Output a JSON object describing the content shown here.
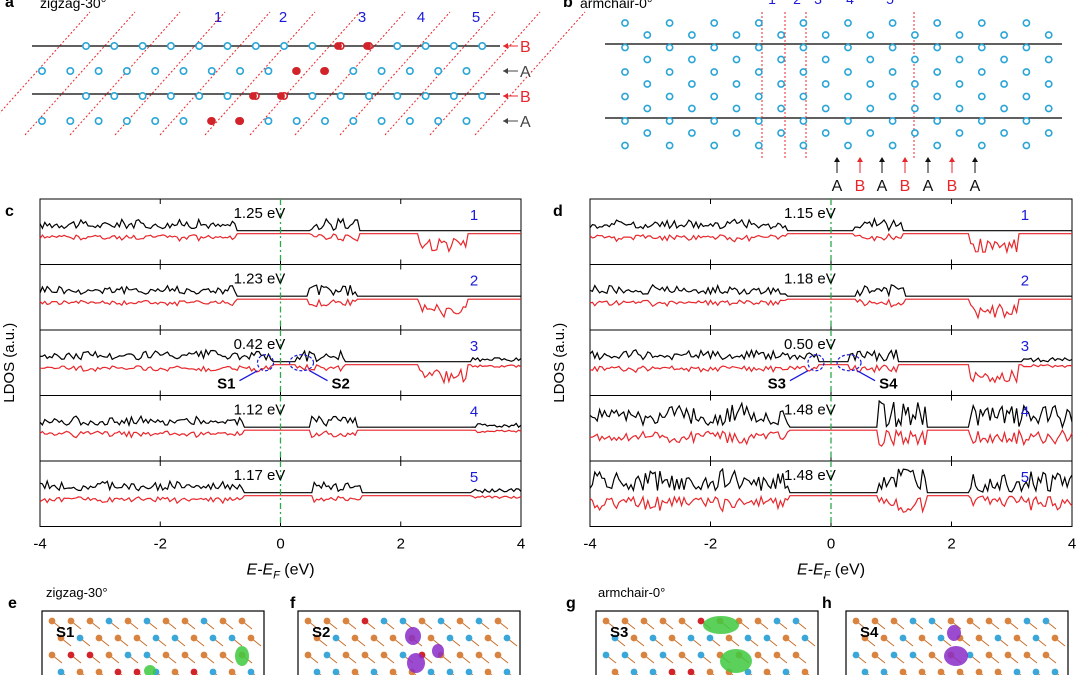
{
  "figure": {
    "panel_labels": {
      "a": "a",
      "b": "b",
      "c": "c",
      "d": "d",
      "e": "e",
      "f": "f",
      "g": "g",
      "h": "h"
    }
  },
  "panel_a": {
    "title": "zigzag-30°",
    "column_labels": [
      "1",
      "2",
      "3",
      "4",
      "5"
    ],
    "row_labels": [
      "B",
      "A",
      "B",
      "A"
    ]
  },
  "panel_b": {
    "title": "armchair-0°",
    "column_labels": [
      "1",
      "2",
      "3",
      "4",
      "5"
    ],
    "bottom_labels": [
      "A",
      "B",
      "A",
      "B",
      "A",
      "B",
      "A"
    ]
  },
  "colors": {
    "atom": "#2aa5d6",
    "defect": "#d2232a",
    "upline": "#000000",
    "downline": "#e8262b",
    "blue_text": "#1a1adb",
    "fermi": "#2ea84a",
    "boundary": "#e8262b"
  },
  "chart_data": [
    {
      "id": "c",
      "type": "line",
      "ylabel": "LDOS (a.u.)",
      "xlabel_main": "E-E",
      "xlabel_sub": "F",
      "xlabel_unit": " (eV)",
      "xlim": [
        -4,
        4
      ],
      "xticks": [
        "-4",
        "-2",
        "0",
        "2",
        "4"
      ],
      "fermi_level": 0,
      "series": [
        {
          "name": "1",
          "gap_label": "1.25 eV",
          "gap": [
            -0.75,
            0.5
          ]
        },
        {
          "name": "2",
          "gap_label": "1.23 eV",
          "gap": [
            -0.75,
            0.48
          ]
        },
        {
          "name": "3",
          "gap_label": "0.42 eV",
          "gap": [
            -0.15,
            0.27
          ],
          "states": [
            {
              "label": "S1",
              "e": -0.25
            },
            {
              "label": "S2",
              "e": 0.35
            }
          ]
        },
        {
          "name": "4",
          "gap_label": "1.12 eV",
          "gap": [
            -0.6,
            0.52
          ]
        },
        {
          "name": "5",
          "gap_label": "1.17 eV",
          "gap": [
            -0.62,
            0.55
          ]
        }
      ]
    },
    {
      "id": "d",
      "type": "line",
      "ylabel": "LDOS (a.u.)",
      "xlabel_main": "E-E",
      "xlabel_sub": "F",
      "xlabel_unit": " (eV)",
      "xlim": [
        -4,
        4
      ],
      "xticks": [
        "-4",
        "-2",
        "0",
        "2",
        "4"
      ],
      "fermi_level": 0,
      "series": [
        {
          "name": "1",
          "gap_label": "1.15 eV",
          "gap": [
            -0.75,
            0.4
          ]
        },
        {
          "name": "2",
          "gap_label": "1.18 eV",
          "gap": [
            -0.75,
            0.43
          ]
        },
        {
          "name": "3",
          "gap_label": "0.50 eV",
          "gap": [
            -0.2,
            0.3
          ],
          "states": [
            {
              "label": "S3",
              "e": -0.25
            },
            {
              "label": "S4",
              "e": 0.3
            }
          ]
        },
        {
          "name": "4",
          "gap_label": "1.48 eV",
          "gap": [
            -0.7,
            0.78
          ]
        },
        {
          "name": "5",
          "gap_label": "1.48 eV",
          "gap": [
            -0.7,
            0.78
          ]
        }
      ]
    }
  ],
  "panel_e": {
    "title": "zigzag-30°",
    "state": "S1"
  },
  "panel_f": {
    "state": "S2"
  },
  "panel_g": {
    "title": "armchair-0°",
    "state": "S3"
  },
  "panel_h": {
    "state": "S4"
  }
}
